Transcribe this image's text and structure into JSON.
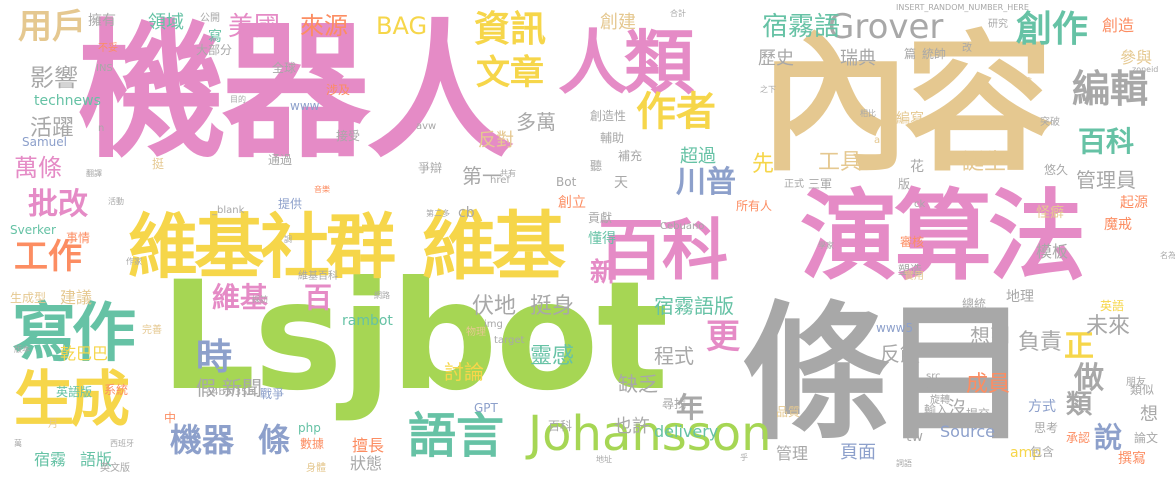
{
  "palette": {
    "pink": "#e58bc6",
    "tan": "#e5c890",
    "gray": "#a8a8a8",
    "yellow": "#f6d64a",
    "green": "#a6d654",
    "teal": "#66c2a5",
    "orange": "#fc8d62",
    "blue": "#8da0cb"
  },
  "words": [
    "機器人",
    "內容",
    "Lsjbot",
    "條目",
    "演算法",
    "維基社群",
    "維基",
    "百科",
    "人類",
    "寫作",
    "生成",
    "語言",
    "Johansson",
    "Grover",
    "資訊",
    "創作",
    "作者",
    "文章",
    "宿霧語",
    "用戶",
    "編輯",
    "美國",
    "來源",
    "BAG",
    "影響",
    "活躍",
    "萬條",
    "批改",
    "工作",
    "川普",
    "維基",
    "百",
    "時",
    "機器",
    "條",
    "更",
    "做",
    "說",
    "正",
    "未來",
    "類",
    "伏地",
    "挺身",
    "宿霧語版",
    "歷史",
    "瑞典",
    "百科",
    "誕生",
    "管理員",
    "多萬",
    "第一",
    "反對",
    "超過",
    "先",
    "工具",
    "想到",
    "成員",
    "靈感",
    "討論",
    "假",
    "新聞",
    "缺乏",
    "程式",
    "反饋",
    "負責",
    "宿霧",
    "語版",
    "頁面",
    "管理",
    "也許",
    "delivery",
    "Source",
    "功能",
    "乾巴巴",
    "建議",
    "生成型",
    "英語版",
    "系統",
    "rambot",
    "php",
    "數據",
    "擅長",
    "狀態",
    "年",
    "沒",
    "tw",
    "amp",
    "想",
    "撰寫",
    "承認",
    "模板",
    "魔戒",
    "起源",
    "怪癖",
    "參與",
    "創造",
    "研究",
    "擁有",
    "公開",
    "領域",
    "寫",
    "創建",
    "全球",
    "大部分",
    "technews",
    "Samuel",
    "事情",
    "Sverker",
    "提供",
    "戰爭",
    "中",
    "完善",
    "www5",
    "英語",
    "總統",
    "地理",
    "塑造",
    "審核",
    "所有人",
    "新",
    "懂得",
    "貢獻",
    "創立",
    "天",
    "聽",
    "爭辯",
    "涉及",
    "接受",
    "挺",
    "通過",
    "補充",
    "輔助",
    "創造性",
    "www",
    "GPT",
    "尋找",
    "品質",
    "方式",
    "思考",
    "包含",
    "類似",
    "朋友",
    "論文",
    "輸入",
    "人工",
    "提交",
    "www",
    "編寫",
    "花",
    "悠久",
    "突破",
    "INSERT_RANDOM_NUMBER_HERE",
    "cb",
    "Bot",
    "Cebuano",
    "href",
    "_blank",
    "a4b3f35b",
    "img",
    "target",
    "src",
    "zoneid",
    "INS",
    "n",
    "avw",
    "ck",
    "合計",
    "改",
    "不妥",
    "篇",
    "統帥",
    "三軍",
    "正式",
    "版",
    "月",
    "英文版",
    "身體",
    "西班牙",
    "之下",
    "相比",
    "大膽",
    "名為",
    "學家",
    "實用",
    "維基百科",
    "第二多",
    "網路",
    "調",
    "共有",
    "目的",
    "音樂",
    "活動",
    "翻譯",
    "物理",
    "採訪",
    "版本",
    "旋轉",
    "詞語",
    "百科",
    "萬",
    "a",
    "作家",
    "乎",
    "地址",
    "法",
    "多"
  ]
}
